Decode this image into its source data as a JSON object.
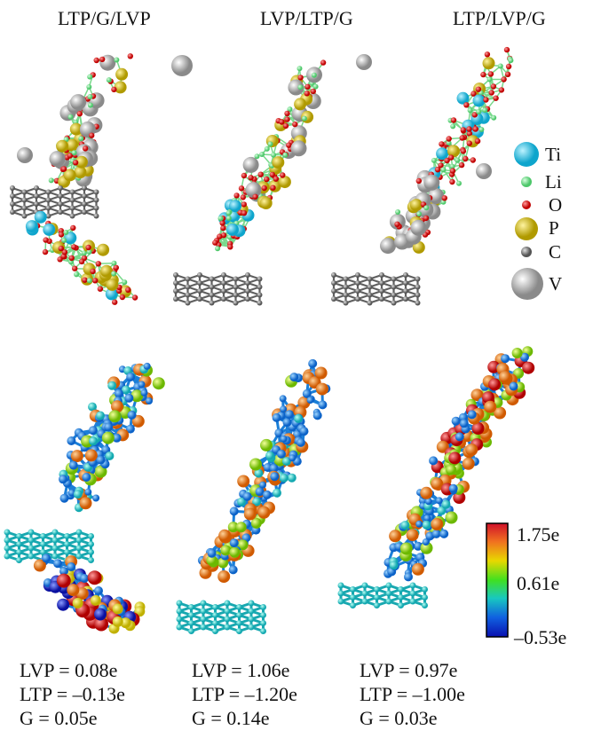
{
  "titles": [
    "LTP/G/LVP",
    "LVP/LTP/G",
    "LTP/LVP/G"
  ],
  "legend": [
    {
      "label": "Ti",
      "color": "#2bc6e6",
      "icon": "sphere"
    },
    {
      "label": "Li",
      "color": "#7fe59a",
      "icon": "sphere"
    },
    {
      "label": "O",
      "color": "#e01010",
      "icon": "sphere"
    },
    {
      "label": "P",
      "color": "#d8c000",
      "icon": "sphere"
    },
    {
      "label": "C",
      "color": "#888888",
      "icon": "sphere"
    },
    {
      "label": "V",
      "color": "#b5b5b5",
      "icon": "sphere"
    }
  ],
  "colorbar": {
    "max": "1.75e",
    "mid": "0.61e",
    "min": "–0.53e",
    "colors": [
      "#d0102a",
      "#f07020",
      "#e8d800",
      "#40e020",
      "#18c8c0",
      "#1060e0",
      "#0a10b0"
    ]
  },
  "charges": [
    {
      "lvp": "LVP = 0.08e",
      "ltp": "LTP = –0.13e",
      "g": "G = 0.05e"
    },
    {
      "lvp": "LVP = 1.06e",
      "ltp": "LTP = –1.20e",
      "g": "G = 0.14e"
    },
    {
      "lvp": "LVP = 0.97e",
      "ltp": "LTP = –1.00e",
      "g": "G = 0.03e"
    }
  ]
}
